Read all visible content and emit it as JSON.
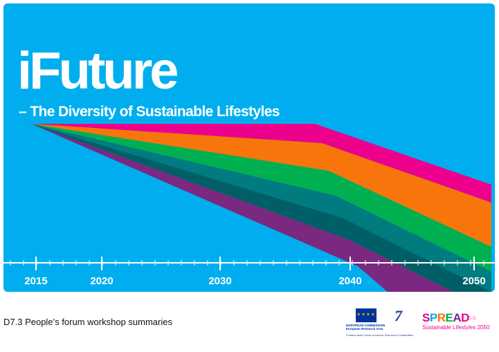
{
  "cover": {
    "title": "iFuture",
    "subtitle": "– The Diversity of Sustainable Lifestyles",
    "background_color": "#00AEEF",
    "band_colors": [
      "#EC008C",
      "#F7750A",
      "#00B050",
      "#007B7F",
      "#7A2880"
    ],
    "timeline": {
      "years": [
        "2015",
        "2020",
        "2030",
        "2040",
        "2050"
      ]
    }
  },
  "footer": {
    "document_title": "D7.3 People’s forum workshop summaries",
    "eu_logo": {
      "line1": "EUROPEAN COMMISSION",
      "line2": "European Research Area",
      "icon": "eu-flag-icon"
    },
    "fp7_logo": {
      "number": "7",
      "icon": "fp7-logo-icon"
    },
    "funded_text": "Funded under Socio-economic Sciences & Humanities",
    "spread_logo": {
      "name": "SPREAD",
      "tagline": "Sustainable Lifestyles 2050",
      "letter_colors": [
        "#EC008C",
        "#00AEEF",
        "#F7750A",
        "#00B050",
        "#7A2880",
        "#EC008C"
      ]
    }
  }
}
